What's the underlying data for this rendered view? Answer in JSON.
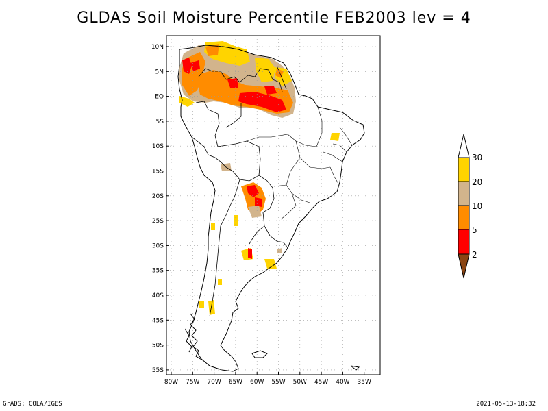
{
  "title": "GLDAS Soil Moisture Percentile FEB2003 lev = 4",
  "footer_left": "GrADS: COLA/IGES",
  "footer_right": "2021-05-13-18:32",
  "map": {
    "lon_range": [
      -81,
      -31
    ],
    "lat_range": [
      -56,
      12
    ],
    "x_ticks": [
      "80W",
      "75W",
      "70W",
      "65W",
      "60W",
      "55W",
      "50W",
      "45W",
      "40W",
      "35W"
    ],
    "y_ticks": [
      "10N",
      "5N",
      "EQ",
      "5S",
      "10S",
      "15S",
      "20S",
      "25S",
      "30S",
      "35S",
      "40S",
      "45S",
      "50S",
      "55S"
    ],
    "grid": true
  },
  "colorbar": {
    "labels": [
      "30",
      "20",
      "10",
      "5",
      "2"
    ],
    "colors": {
      "above_30": "#ffffff",
      "20_30": "#ffd400",
      "10_20": "#d2b48c",
      "5_10": "#ff8c00",
      "2_5": "#ff0000",
      "below_2": "#8b4513"
    }
  }
}
